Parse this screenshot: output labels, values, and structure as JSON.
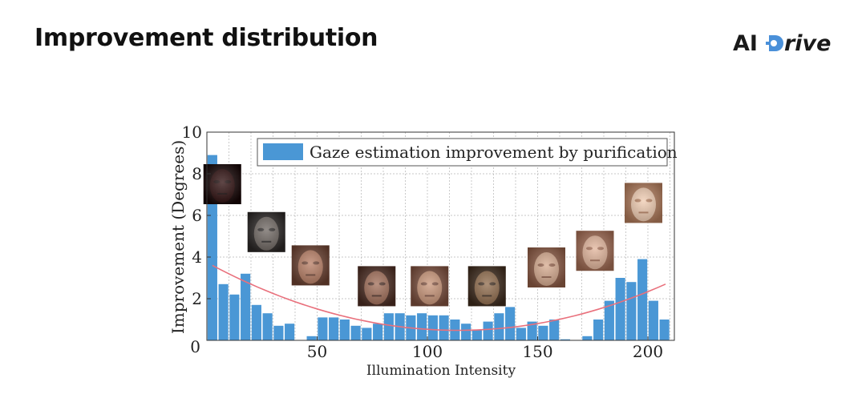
{
  "slide": {
    "title": "Improvement distribution"
  },
  "logo": {
    "ai": "AI",
    "rive": "rive",
    "gear_color": "#4a90d9"
  },
  "colors": {
    "bar": "#4a97d5",
    "trend": "#e9707c",
    "grid": "#b5b5b5",
    "axis": "#333333"
  },
  "chart_data": {
    "type": "bar",
    "title": "",
    "xlabel": "Illumination Intensity",
    "ylabel": "Improvement (Degrees)",
    "xlim": [
      0,
      212
    ],
    "ylim": [
      0,
      10
    ],
    "x_ticks": [
      0,
      50,
      100,
      150,
      200
    ],
    "x_tick_labels": [
      "0",
      "50",
      "100",
      "150",
      "200"
    ],
    "y_ticks": [
      2,
      4,
      6,
      8,
      10
    ],
    "y_tick_labels": [
      "2",
      "4",
      "6",
      "8",
      "10"
    ],
    "grid": true,
    "legend": {
      "position": "top-right",
      "label": "Gaze estimation improvement by purification"
    },
    "bin_width": 5,
    "x": [
      2.5,
      7.5,
      12.5,
      17.5,
      22.5,
      27.5,
      32.5,
      37.5,
      42.5,
      47.5,
      52.5,
      57.5,
      62.5,
      67.5,
      72.5,
      77.5,
      82.5,
      87.5,
      92.5,
      97.5,
      102.5,
      107.5,
      112.5,
      117.5,
      122.5,
      127.5,
      132.5,
      137.5,
      142.5,
      147.5,
      152.5,
      157.5,
      162.5,
      167.5,
      172.5,
      177.5,
      182.5,
      187.5,
      192.5,
      197.5,
      202.5,
      207.5
    ],
    "values": [
      8.9,
      2.7,
      2.2,
      3.2,
      1.7,
      1.3,
      0.7,
      0.8,
      0.0,
      0.2,
      1.1,
      1.1,
      1.0,
      0.7,
      0.6,
      0.8,
      1.3,
      1.3,
      1.2,
      1.3,
      1.2,
      1.2,
      1.0,
      0.8,
      0.5,
      0.9,
      1.3,
      1.6,
      0.6,
      0.9,
      0.7,
      1.0,
      0.05,
      0.0,
      0.2,
      1.0,
      1.9,
      3.0,
      2.8,
      3.9,
      1.9,
      1.0
    ],
    "trend_curve": {
      "type": "quadratic",
      "points": [
        [
          2.5,
          3.6
        ],
        [
          105,
          0.5
        ],
        [
          208,
          2.7
        ]
      ]
    },
    "annotations": [
      {
        "name": "face-image-very-dark",
        "x": 7,
        "y": 7.5,
        "tone": [
          "#2a0a0a",
          "#150505"
        ]
      },
      {
        "name": "face-image-dark",
        "x": 27,
        "y": 5.2,
        "tone": [
          "#6d6560",
          "#2a2625"
        ]
      },
      {
        "name": "face-image-glasses",
        "x": 47,
        "y": 3.6,
        "tone": [
          "#b77c62",
          "#6a4030"
        ]
      },
      {
        "name": "face-image-bearded-man",
        "x": 77,
        "y": 2.6,
        "tone": [
          "#a06c56",
          "#4b2c22"
        ]
      },
      {
        "name": "face-image-woman",
        "x": 101,
        "y": 2.6,
        "tone": [
          "#c99477",
          "#7a4d3c"
        ]
      },
      {
        "name": "face-image-man-goatee",
        "x": 127,
        "y": 2.6,
        "tone": [
          "#8f6a4a",
          "#3d2a1c"
        ]
      },
      {
        "name": "face-image-glasses-2",
        "x": 154,
        "y": 3.5,
        "tone": [
          "#d6a98d",
          "#8c5a44"
        ]
      },
      {
        "name": "face-image-woman-2",
        "x": 176,
        "y": 4.3,
        "tone": [
          "#e2b49a",
          "#a06a52"
        ]
      },
      {
        "name": "face-image-bright",
        "x": 198,
        "y": 6.6,
        "tone": [
          "#f0cbb0",
          "#b07a5a"
        ]
      }
    ]
  }
}
